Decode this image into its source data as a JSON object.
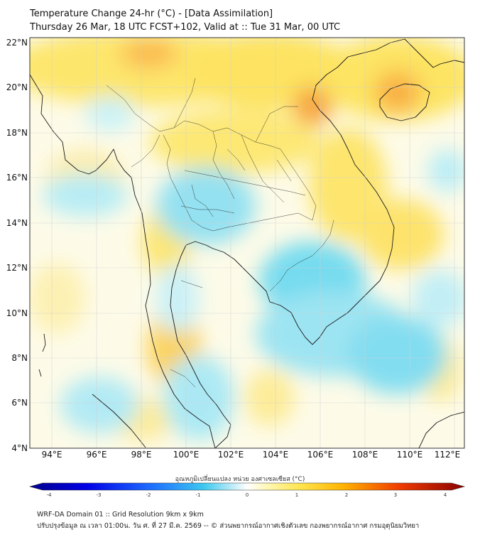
{
  "title": {
    "line1": "Temperature Change 24-hr (°C) - [Data Assimilation]",
    "line2": "Thursday 26 Mar, 18 UTC FCST+102, Valid at :: Tue 31 Mar, 00 UTC"
  },
  "map": {
    "lat_labels": [
      "22°N",
      "20°N",
      "18°N",
      "16°N",
      "14°N",
      "12°N",
      "10°N",
      "8°N",
      "6°N",
      "4°N"
    ],
    "lon_labels": [
      "94°E",
      "96°E",
      "98°E",
      "100°E",
      "102°E",
      "104°E",
      "106°E",
      "108°E",
      "110°E",
      "112°E"
    ],
    "lat_range": [
      4,
      22
    ],
    "lon_range": [
      93,
      112.5
    ],
    "gridlines": true
  },
  "colorbar": {
    "label": "อุณหภูมิเปลี่ยนแปลง หน่วย องศาเซลเซียส (°C)",
    "ticks": [
      "-4",
      "-3",
      "-2",
      "-1",
      "0",
      "1",
      "2",
      "3",
      "4"
    ],
    "range": [
      -4,
      4
    ],
    "colors": [
      "#00008b",
      "#0000e6",
      "#1e6eff",
      "#3cc8f0",
      "#ffffff",
      "#ffe650",
      "#ffb400",
      "#f03c00",
      "#8b0000"
    ]
  },
  "footer": {
    "line1": "WRF-DA Domain 01 :: Grid Resolution 9km x 9km",
    "line2": "ปรับปรุงข้อมูล ณ เวลา 01:00น. วัน ศ. ที่ 27 มี.ค. 2569 -- © ส่วนพยากรณ์อากาศเชิงตัวเลข กองพยากรณ์อากาศ กรมอุตุนิยมวิทยา"
  }
}
